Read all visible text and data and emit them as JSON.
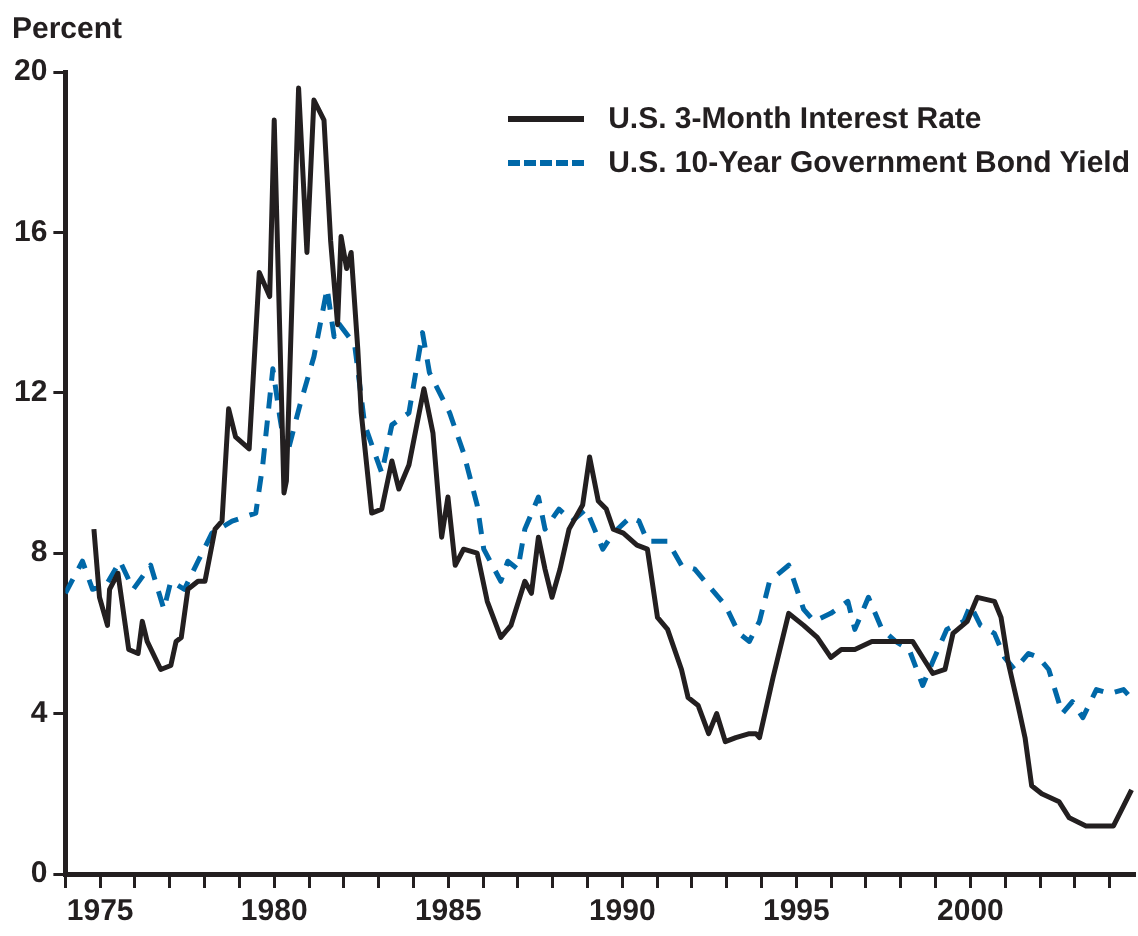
{
  "chart_data": {
    "type": "line",
    "ylabel": "Percent",
    "xlim": [
      1974,
      2004.7
    ],
    "xticks": [
      {
        "value": 1974,
        "label": null
      },
      1975,
      {
        "value": 1976,
        "label": null
      },
      {
        "value": 1977,
        "label": null
      },
      {
        "value": 1978,
        "label": null
      },
      {
        "value": 1979,
        "label": null
      },
      1980,
      {
        "value": 1981,
        "label": null
      },
      {
        "value": 1982,
        "label": null
      },
      {
        "value": 1983,
        "label": null
      },
      {
        "value": 1984,
        "label": null
      },
      1985,
      {
        "value": 1986,
        "label": null
      },
      {
        "value": 1987,
        "label": null
      },
      {
        "value": 1988,
        "label": null
      },
      {
        "value": 1989,
        "label": null
      },
      1990,
      {
        "value": 1991,
        "label": null
      },
      {
        "value": 1992,
        "label": null
      },
      {
        "value": 1993,
        "label": null
      },
      {
        "value": 1994,
        "label": null
      },
      1995,
      {
        "value": 1996,
        "label": null
      },
      {
        "value": 1997,
        "label": null
      },
      {
        "value": 1998,
        "label": null
      },
      {
        "value": 1999,
        "label": null
      },
      2000,
      {
        "value": 2001,
        "label": null
      },
      {
        "value": 2002,
        "label": null
      },
      {
        "value": 2003,
        "label": null
      },
      {
        "value": 2004,
        "label": null
      }
    ],
    "ylim": [
      0,
      20
    ],
    "yticks": [
      0,
      4,
      8,
      12,
      16,
      20
    ],
    "grid": false,
    "legend": "top right",
    "marker": "none",
    "series": [
      {
        "name": "U.S. 3-Month Interest Rate",
        "color": "#231f20",
        "line_style": "solid",
        "x": [
          1974.82,
          1974.98,
          1975.21,
          1975.27,
          1975.51,
          1975.82,
          1976.09,
          1976.21,
          1976.35,
          1976.74,
          1977.03,
          1977.18,
          1977.33,
          1977.52,
          1977.81,
          1978.01,
          1978.3,
          1978.5,
          1978.69,
          1978.89,
          1979.28,
          1979.57,
          1979.87,
          1980.0,
          1980.28,
          1980.35,
          1980.7,
          1980.94,
          1981.14,
          1981.43,
          1981.62,
          1981.82,
          1981.92,
          1982.08,
          1982.21,
          1982.4,
          1982.5,
          1982.8,
          1983.09,
          1983.38,
          1983.58,
          1983.87,
          1984.3,
          1984.56,
          1984.81,
          1984.99,
          1985.2,
          1985.44,
          1985.83,
          1986.12,
          1986.51,
          1986.8,
          1987.2,
          1987.39,
          1987.59,
          1987.78,
          1987.98,
          1988.21,
          1988.47,
          1988.86,
          1989.06,
          1989.31,
          1989.54,
          1989.74,
          1990.03,
          1990.42,
          1990.72,
          1991.01,
          1991.3,
          1991.7,
          1991.89,
          1992.18,
          1992.48,
          1992.71,
          1992.96,
          1993.26,
          1993.65,
          1993.84,
          1993.94,
          1994.33,
          1994.78,
          1995.21,
          1995.6,
          1995.99,
          1996.29,
          1996.68,
          1997.17,
          1997.75,
          1998.34,
          1998.63,
          1998.92,
          1999.27,
          1999.5,
          1999.91,
          2000.2,
          2000.69,
          2000.88,
          2001.08,
          2001.37,
          2001.57,
          2001.76,
          2002.05,
          2002.55,
          2002.84,
          2003.32,
          2003.81,
          2004.11,
          2004.4,
          2004.63
        ],
        "values": [
          8.6,
          6.9,
          6.2,
          7.1,
          7.5,
          5.6,
          5.5,
          6.3,
          5.8,
          5.1,
          5.2,
          5.8,
          5.9,
          7.1,
          7.3,
          7.3,
          8.6,
          8.8,
          11.6,
          10.9,
          10.6,
          15.0,
          14.4,
          18.8,
          9.5,
          9.8,
          19.6,
          15.5,
          19.3,
          18.8,
          15.8,
          13.7,
          15.9,
          15.1,
          15.5,
          13.1,
          11.5,
          9.0,
          9.1,
          10.3,
          9.6,
          10.2,
          12.1,
          11.0,
          8.4,
          9.4,
          7.7,
          8.1,
          8.0,
          6.8,
          5.9,
          6.2,
          7.3,
          7.0,
          8.4,
          7.6,
          6.9,
          7.6,
          8.6,
          9.2,
          10.4,
          9.3,
          9.1,
          8.6,
          8.5,
          8.2,
          8.1,
          6.4,
          6.1,
          5.1,
          4.4,
          4.2,
          3.5,
          4.0,
          3.3,
          3.4,
          3.5,
          3.5,
          3.4,
          4.9,
          6.5,
          6.2,
          5.9,
          5.4,
          5.6,
          5.6,
          5.8,
          5.8,
          5.8,
          5.4,
          5.0,
          5.1,
          6.0,
          6.3,
          6.9,
          6.8,
          6.4,
          5.3,
          4.2,
          3.4,
          2.2,
          2.0,
          1.8,
          1.4,
          1.2,
          1.2,
          1.2,
          1.7,
          2.1
        ]
      },
      {
        "name": "U.S. 10-Year Government Bond Yield",
        "color": "#0068a8",
        "line_style": "dashed",
        "x": [
          1974.0,
          1974.49,
          1974.78,
          1975.17,
          1975.57,
          1975.95,
          1976.45,
          1976.83,
          1977.03,
          1977.42,
          1977.81,
          1978.21,
          1978.79,
          1979.47,
          1979.67,
          1979.96,
          1980.16,
          1980.35,
          1980.74,
          1981.14,
          1981.52,
          1981.72,
          1981.88,
          1982.31,
          1982.6,
          1983.09,
          1983.38,
          1983.87,
          1984.26,
          1984.46,
          1985.04,
          1985.44,
          1985.83,
          1986.02,
          1986.51,
          1986.71,
          1987.0,
          1987.2,
          1987.59,
          1987.78,
          1988.18,
          1988.56,
          1988.96,
          1989.44,
          1989.74,
          1990.23,
          1990.48,
          1990.72,
          1991.3,
          1991.7,
          1992.08,
          1992.57,
          1992.96,
          1993.35,
          1993.65,
          1993.94,
          1994.23,
          1994.78,
          1995.21,
          1995.51,
          1995.99,
          1996.48,
          1996.68,
          1997.07,
          1997.46,
          1997.85,
          1998.24,
          1998.63,
          1998.92,
          1999.32,
          1999.81,
          2000.0,
          2000.29,
          2000.69,
          2000.98,
          2001.27,
          2001.67,
          2001.96,
          2002.25,
          2002.64,
          2002.93,
          2003.23,
          2003.62,
          2004.01,
          2004.4,
          2004.6
        ],
        "values": [
          7.0,
          7.8,
          7.1,
          7.2,
          7.8,
          7.1,
          7.7,
          6.6,
          7.3,
          7.1,
          7.8,
          8.5,
          8.8,
          9.0,
          10.2,
          12.6,
          11.4,
          10.4,
          11.7,
          12.9,
          14.6,
          13.4,
          13.7,
          13.2,
          11.2,
          10.0,
          11.2,
          11.5,
          13.5,
          12.5,
          11.5,
          10.5,
          9.2,
          8.1,
          7.3,
          7.8,
          7.6,
          8.6,
          9.4,
          8.6,
          9.1,
          8.8,
          9.1,
          8.1,
          8.5,
          8.9,
          8.8,
          8.3,
          8.3,
          7.7,
          7.6,
          7.1,
          6.7,
          6.0,
          5.8,
          6.3,
          7.3,
          7.7,
          6.6,
          6.3,
          6.5,
          6.8,
          6.1,
          6.9,
          6.1,
          5.8,
          5.6,
          4.7,
          5.3,
          6.1,
          6.3,
          6.7,
          6.2,
          6.0,
          5.4,
          5.1,
          5.5,
          5.4,
          5.1,
          4.0,
          4.3,
          3.9,
          4.6,
          4.5,
          4.6,
          4.4
        ]
      }
    ]
  }
}
